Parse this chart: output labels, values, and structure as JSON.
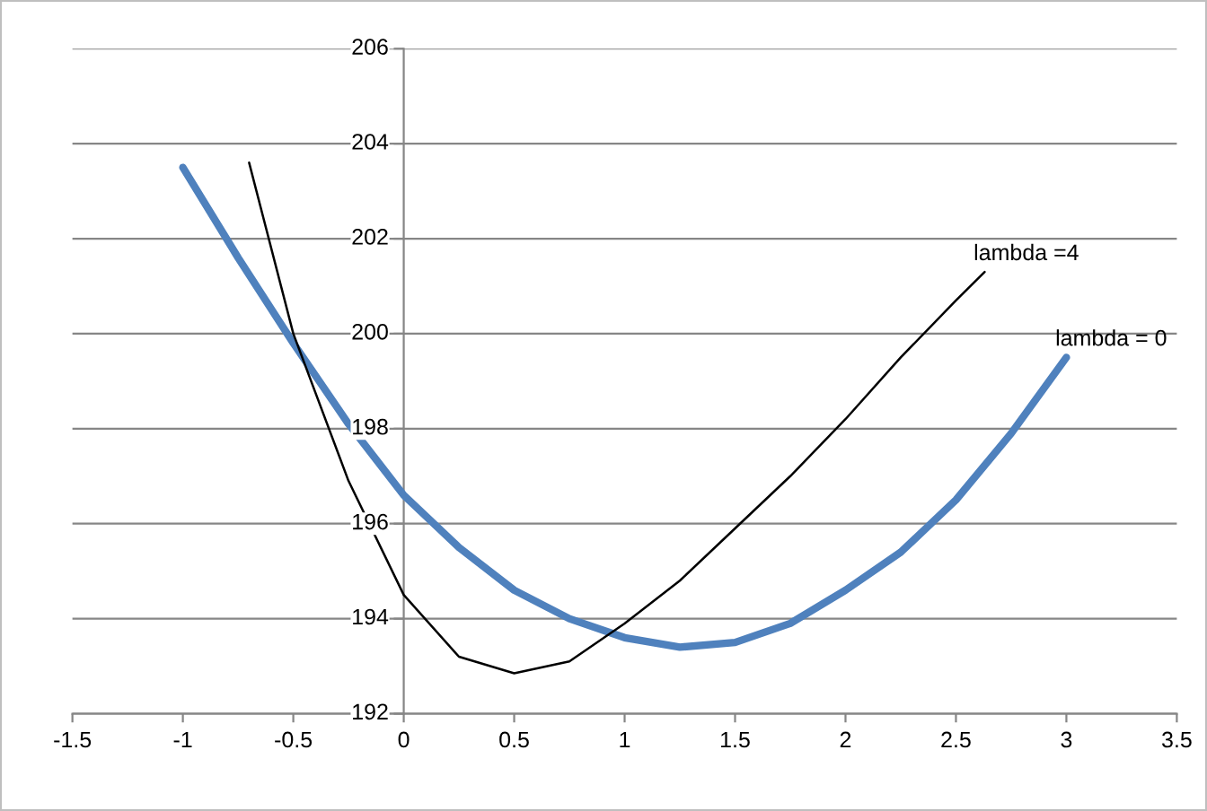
{
  "chart_data": {
    "type": "line",
    "xlim": [
      -1.5,
      3.5
    ],
    "xticks": [
      -1.5,
      -1,
      -0.5,
      0,
      0.5,
      1,
      1.5,
      2,
      2.5,
      3,
      3.5
    ],
    "ylim": [
      192,
      206
    ],
    "yticks": [
      192,
      194,
      196,
      198,
      200,
      202,
      204,
      206
    ],
    "grid": "y",
    "legend": false,
    "marker": "none",
    "line_style": "solid",
    "series": [
      {
        "name": "lambda = 0",
        "color": "#4f81bd",
        "x": [
          -1,
          -0.75,
          -0.5,
          -0.25,
          0,
          0.25,
          0.5,
          0.75,
          1,
          1.25,
          1.5,
          1.75,
          2,
          2.25,
          2.5,
          2.75,
          3
        ],
        "values": [
          203.5,
          201.6,
          199.8,
          198.1,
          196.6,
          195.5,
          194.6,
          194.0,
          193.6,
          193.4,
          193.5,
          193.9,
          194.6,
          195.4,
          196.5,
          197.9,
          199.5
        ]
      },
      {
        "name": "lambda =4",
        "color": "#000000",
        "x": [
          -0.7,
          -0.5,
          -0.25,
          0,
          0.25,
          0.5,
          0.75,
          1,
          1.25,
          1.5,
          1.75,
          2,
          2.25,
          2.5,
          2.63
        ],
        "values": [
          203.6,
          200.0,
          196.9,
          194.5,
          193.2,
          192.85,
          193.1,
          193.9,
          194.8,
          195.9,
          197.0,
          198.2,
          199.5,
          200.7,
          201.3
        ]
      }
    ]
  }
}
